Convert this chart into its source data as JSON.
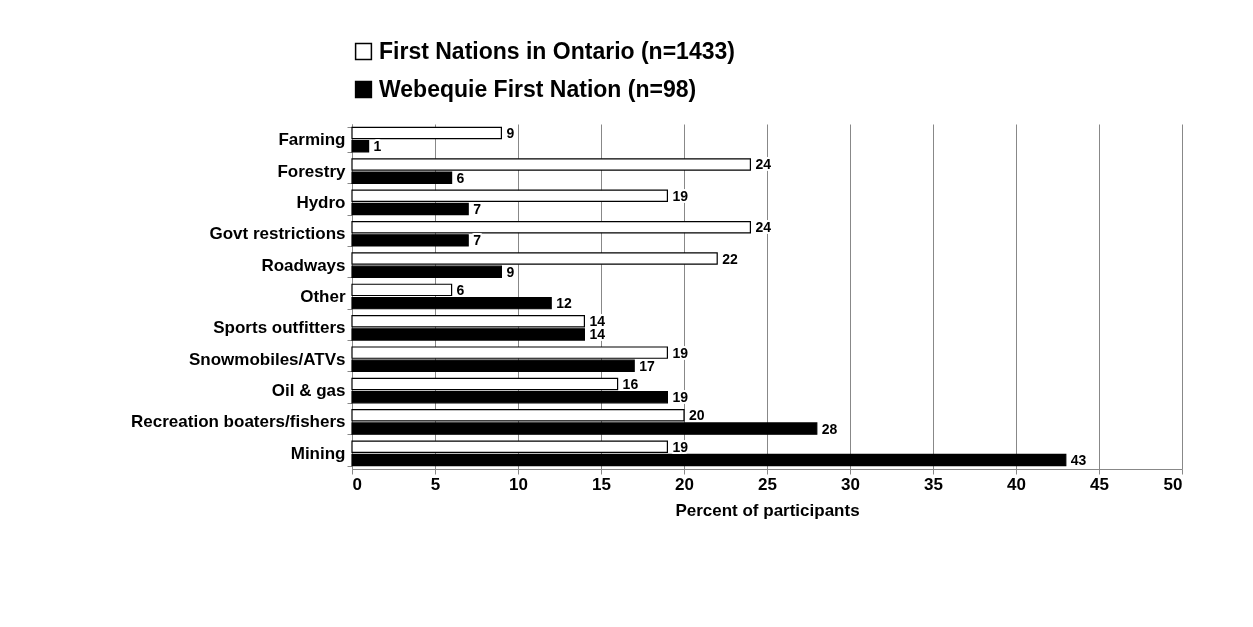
{
  "chart_data": {
    "type": "bar",
    "orientation": "horizontal",
    "xlabel": "Percent of participants",
    "categories": [
      "Farming",
      "Forestry",
      "Hydro",
      "Govt restrictions",
      "Roadways",
      "Other",
      "Sports outfitters",
      "Snowmobiles/ATVs",
      "Oil & gas",
      "Recreation boaters/fishers",
      "Mining"
    ],
    "series": [
      {
        "name": "First Nations in Ontario (n=1433)",
        "color": "#ffffff",
        "values": [
          9,
          24,
          19,
          24,
          22,
          6,
          14,
          19,
          16,
          20,
          19
        ]
      },
      {
        "name": "Webequie First Nation (n=98)",
        "color": "#000000",
        "values": [
          1,
          6,
          7,
          7,
          9,
          12,
          14,
          17,
          19,
          28,
          43
        ]
      }
    ],
    "xlim": [
      0,
      50
    ],
    "xticks": [
      0,
      5,
      10,
      15,
      20,
      25,
      30,
      35,
      40,
      45,
      50
    ],
    "grid": "x",
    "legend": "top",
    "data_labels": true
  }
}
